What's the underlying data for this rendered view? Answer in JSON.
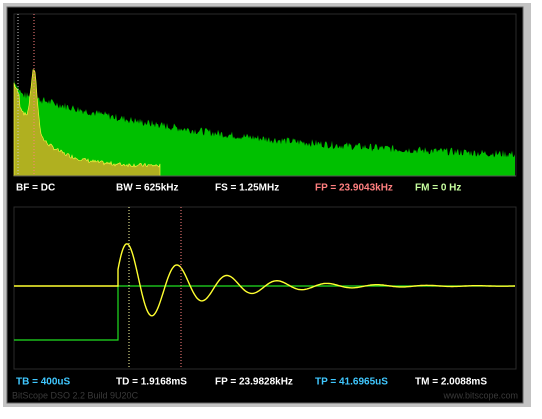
{
  "spectrum_status": {
    "bf": "BF = DC",
    "bw": "BW = 625kHz",
    "fs": "FS = 1.25MHz",
    "fp": "FP = 23.9043kHz",
    "fm": "FM = 0 Hz"
  },
  "time_status": {
    "tb": "TB = 400uS",
    "td": "TD = 1.9168mS",
    "fp": "FP = 23.9828kHz",
    "tp": "TP = 41.6965uS",
    "tm": "TM = 2.0088mS"
  },
  "footer": {
    "build": "BitScope DSO 2.2 Build 9U20C",
    "url": "www.bitscope.com"
  }
}
